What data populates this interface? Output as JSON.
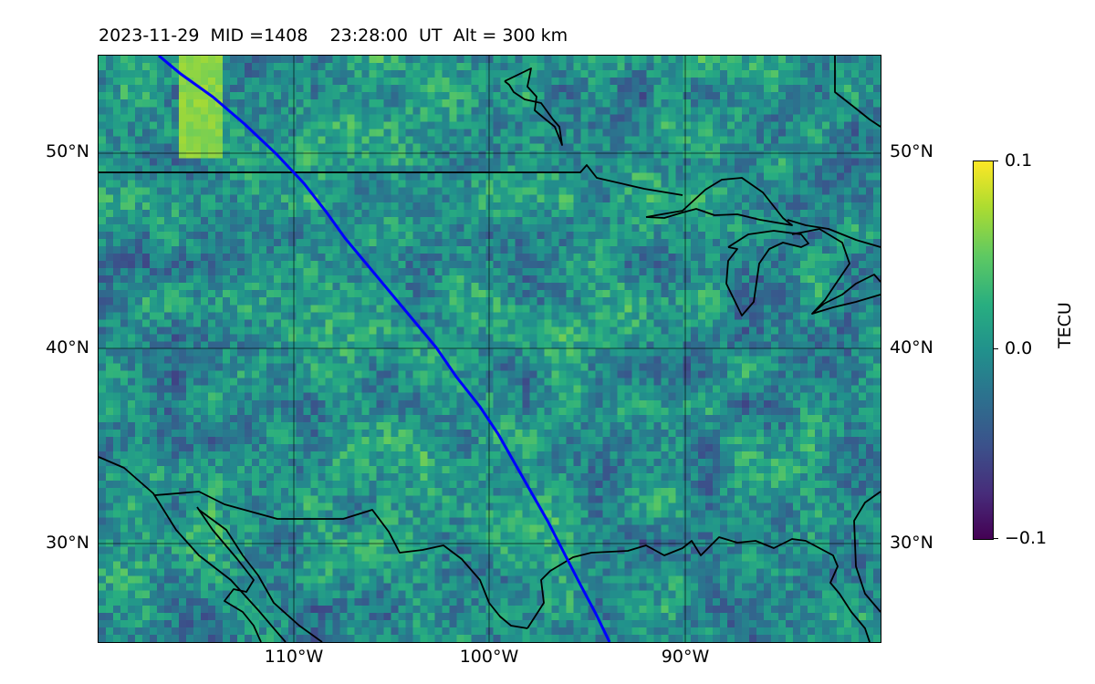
{
  "title": "2023-11-29  MID =1408    23:28:00  UT  Alt = 300 km",
  "map": {
    "lat_labels": [
      "50°N",
      "40°N",
      "30°N"
    ],
    "lon_labels": [
      "110°W",
      "100°W",
      "90°W"
    ],
    "extent": {
      "lon_min": -120,
      "lon_max": -80,
      "lat_min": 25,
      "lat_max": 55
    },
    "gridlines": {
      "lons": [
        -110,
        -100,
        -90
      ],
      "lats": [
        50,
        40,
        30
      ]
    },
    "track_color": "#0000ff",
    "coastline_color": "#000000"
  },
  "colorbar": {
    "label": "TECU",
    "ticks": [
      "0.1",
      "0.0",
      "−0.1"
    ],
    "range": [
      -0.1,
      0.1
    ],
    "colormap": "viridis"
  }
}
